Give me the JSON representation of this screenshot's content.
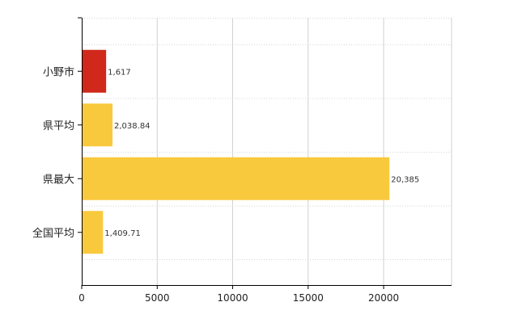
{
  "chart_data": {
    "type": "bar",
    "orientation": "horizontal",
    "categories": [
      "小野市",
      "県平均",
      "県最大",
      "全国平均"
    ],
    "values": [
      1617,
      2038.84,
      20385,
      1409.71
    ],
    "value_labels": [
      "1,617",
      "2,038.84",
      "20,385",
      "1,409.71"
    ],
    "bar_colors": [
      "#d0281a",
      "#f9c93d",
      "#f9c93d",
      "#f9c93d"
    ],
    "xticks": [
      0,
      5000,
      10000,
      15000,
      20000
    ],
    "xtick_labels": [
      "0",
      "5000",
      "10000",
      "15000",
      "20000"
    ],
    "xlim": [
      0,
      24500
    ],
    "grid": true,
    "title": "",
    "xlabel": "",
    "ylabel": ""
  }
}
